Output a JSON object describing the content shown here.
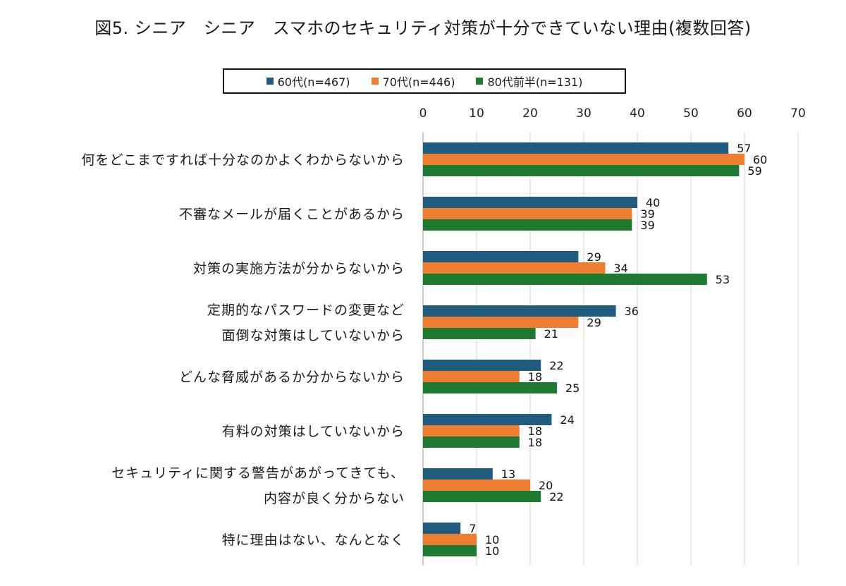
{
  "chart_data": {
    "type": "bar",
    "orientation": "horizontal",
    "title": "図5. シニア　シニア　スマホのセキュリティ対策が十分できていない理由(複数回答)",
    "xlabel": "",
    "ylabel": "",
    "xlim": [
      0,
      70
    ],
    "ticks": [
      "0",
      "10",
      "20",
      "30",
      "40",
      "50",
      "60",
      "70"
    ],
    "grid": true,
    "legend_position": "top",
    "categories": [
      [
        "何をどこまですれば十分なのかよくわからないから"
      ],
      [
        "不審なメールが届くことがあるから"
      ],
      [
        "対策の実施方法が分からないから"
      ],
      [
        "定期的なパスワードの変更など",
        "面倒な対策はしていないから"
      ],
      [
        "どんな脅威があるか分からないから"
      ],
      [
        "有料の対策はしていないから"
      ],
      [
        "セキュリティに関する警告があがってきても、",
        "内容が良く分からない"
      ],
      [
        "特に理由はない、なんとなく"
      ]
    ],
    "series": [
      {
        "name": "60代(n=467)",
        "color": "#1f5c80",
        "values": [
          57,
          40,
          29,
          36,
          22,
          24,
          13,
          7
        ]
      },
      {
        "name": "70代(n=446)",
        "color": "#ed7d31",
        "values": [
          60,
          39,
          34,
          29,
          18,
          18,
          20,
          10
        ]
      },
      {
        "name": "80代前半(n=131)",
        "color": "#1e7a2e",
        "values": [
          59,
          39,
          53,
          21,
          25,
          18,
          22,
          10
        ]
      }
    ]
  }
}
